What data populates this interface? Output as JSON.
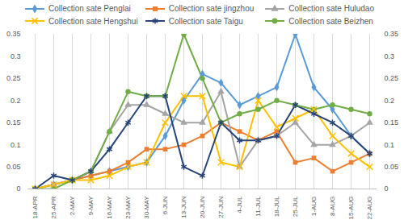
{
  "chart_data": {
    "type": "line",
    "categories": [
      "18-APR",
      "25-APR",
      "2-MAY",
      "9-MAY",
      "16-MAY",
      "23-MAY",
      "30-MAY",
      "6-JUN",
      "13-JUN",
      "20-JUN",
      "27-JUN",
      "4-JUL",
      "11-JUL",
      "18-JUL",
      "25-JUL",
      "1-AUG",
      "8-AUG",
      "15-AUG",
      "22-AUG"
    ],
    "series": [
      {
        "name": "Collection sate Penglai",
        "color": "#5b9bd5",
        "marker": "diamond",
        "values": [
          0,
          0.01,
          0.02,
          0.03,
          0.04,
          0.05,
          0.06,
          0.12,
          0.2,
          0.26,
          0.24,
          0.19,
          0.21,
          0.23,
          0.35,
          0.23,
          0.18,
          0.12,
          0.08
        ]
      },
      {
        "name": "Collection sate jingzhou",
        "color": "#ed7d31",
        "marker": "square",
        "values": [
          0,
          0.01,
          0.02,
          0.03,
          0.04,
          0.06,
          0.09,
          0.09,
          0.1,
          0.12,
          0.15,
          0.13,
          0.11,
          0.13,
          0.06,
          0.07,
          0.04,
          0.06,
          0.08
        ]
      },
      {
        "name": "Collection sate Huludao",
        "color": "#a5a5a5",
        "marker": "triangle",
        "values": [
          0,
          0.01,
          0.02,
          0.04,
          0.13,
          0.19,
          0.19,
          0.17,
          0.15,
          0.15,
          0.22,
          0.05,
          0.11,
          0.12,
          0.15,
          0.1,
          0.1,
          0.12,
          0.15
        ]
      },
      {
        "name": "Collection sate Hengshui",
        "color": "#ffc000",
        "marker": "times",
        "values": [
          0,
          0.01,
          0.02,
          0.02,
          0.03,
          0.05,
          0.06,
          0.15,
          0.21,
          0.21,
          0.06,
          0.05,
          0.2,
          0.14,
          0.16,
          0.18,
          0.12,
          0.08,
          0.05
        ]
      },
      {
        "name": "Collection sate Taigu",
        "color": "#264478",
        "marker": "asterisk",
        "values": [
          0,
          0.03,
          0.02,
          0.04,
          0.09,
          0.15,
          0.21,
          0.21,
          0.05,
          0.03,
          0.15,
          0.11,
          0.11,
          0.12,
          0.19,
          0.17,
          0.15,
          0.12,
          0.08
        ]
      },
      {
        "name": "Collection sate Beizhen",
        "color": "#70ad47",
        "marker": "circle",
        "values": [
          0,
          0,
          0.02,
          0.04,
          0.13,
          0.22,
          0.21,
          0.21,
          0.35,
          0.25,
          0.15,
          0.17,
          0.18,
          0.2,
          0.19,
          0.18,
          0.19,
          0.18,
          0.17
        ]
      }
    ],
    "ylim": [
      0,
      0.35
    ],
    "yticks": [
      0,
      0.05,
      0.1,
      0.15,
      0.2,
      0.25,
      0.3,
      0.35
    ],
    "y2lim": [
      0,
      0.35
    ],
    "y2ticks": [
      0,
      0.05,
      0.1,
      0.15,
      0.2,
      0.25,
      0.3,
      0.35
    ],
    "grid": true,
    "legend": "top"
  }
}
